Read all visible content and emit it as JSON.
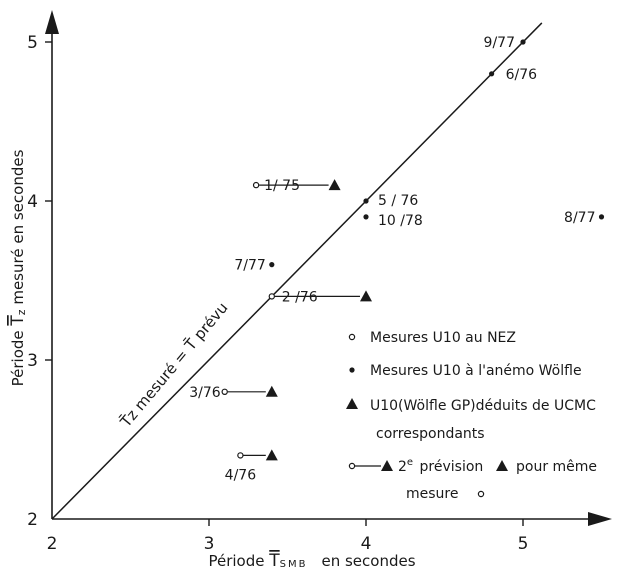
{
  "chart_data": {
    "type": "scatter",
    "xlabel_parts": {
      "pre": "Période ",
      "sym": "T",
      "sub": "SMB",
      "post": "en secondes"
    },
    "ylabel_parts": {
      "pre": "Période ",
      "sym": "T",
      "sub": "z",
      "post": " mesuré en secondes"
    },
    "xlim": [
      2,
      5.5
    ],
    "ylim": [
      2,
      5.2
    ],
    "x_ticks": [
      "2",
      "3",
      "4",
      "5"
    ],
    "y_ticks": [
      "2",
      "3",
      "4",
      "5"
    ],
    "diagonal_label": "T̄z mesuré = T̄ prévu",
    "series": [
      {
        "marker": "open-circle",
        "points": [
          {
            "x": 3.3,
            "y": 4.1,
            "label": "1/ 75"
          },
          {
            "x": 3.4,
            "y": 3.4,
            "label": "2 /76"
          },
          {
            "x": 3.1,
            "y": 2.8,
            "label": "3/76"
          },
          {
            "x": 3.2,
            "y": 2.4,
            "label": "4/76"
          }
        ]
      },
      {
        "marker": "filled-circle",
        "points": [
          {
            "x": 5.0,
            "y": 5.0,
            "label": "9/77"
          },
          {
            "x": 4.8,
            "y": 4.8,
            "label": "6/76"
          },
          {
            "x": 4.0,
            "y": 4.0,
            "label": "5 / 76"
          },
          {
            "x": 4.0,
            "y": 3.9,
            "label": "10 /78"
          },
          {
            "x": 3.4,
            "y": 3.6,
            "label": "7/77"
          },
          {
            "x": 5.5,
            "y": 3.9,
            "label": "8/77"
          }
        ]
      },
      {
        "marker": "triangle",
        "points": [
          {
            "x": 3.8,
            "y": 4.1
          },
          {
            "x": 4.0,
            "y": 3.4
          },
          {
            "x": 3.4,
            "y": 2.8
          },
          {
            "x": 3.4,
            "y": 2.4
          }
        ]
      }
    ],
    "legend": {
      "open": "Mesures U10 au NEZ",
      "filled": "Mesures U10 à l'anémo Wölfle",
      "tri_line1": "U10(Wölfle GP)déduits de UCMC",
      "tri_line2": "correspondants",
      "pair_a": "2e prévision",
      "pair_b": "pour même",
      "pair_c": "mesure"
    }
  }
}
